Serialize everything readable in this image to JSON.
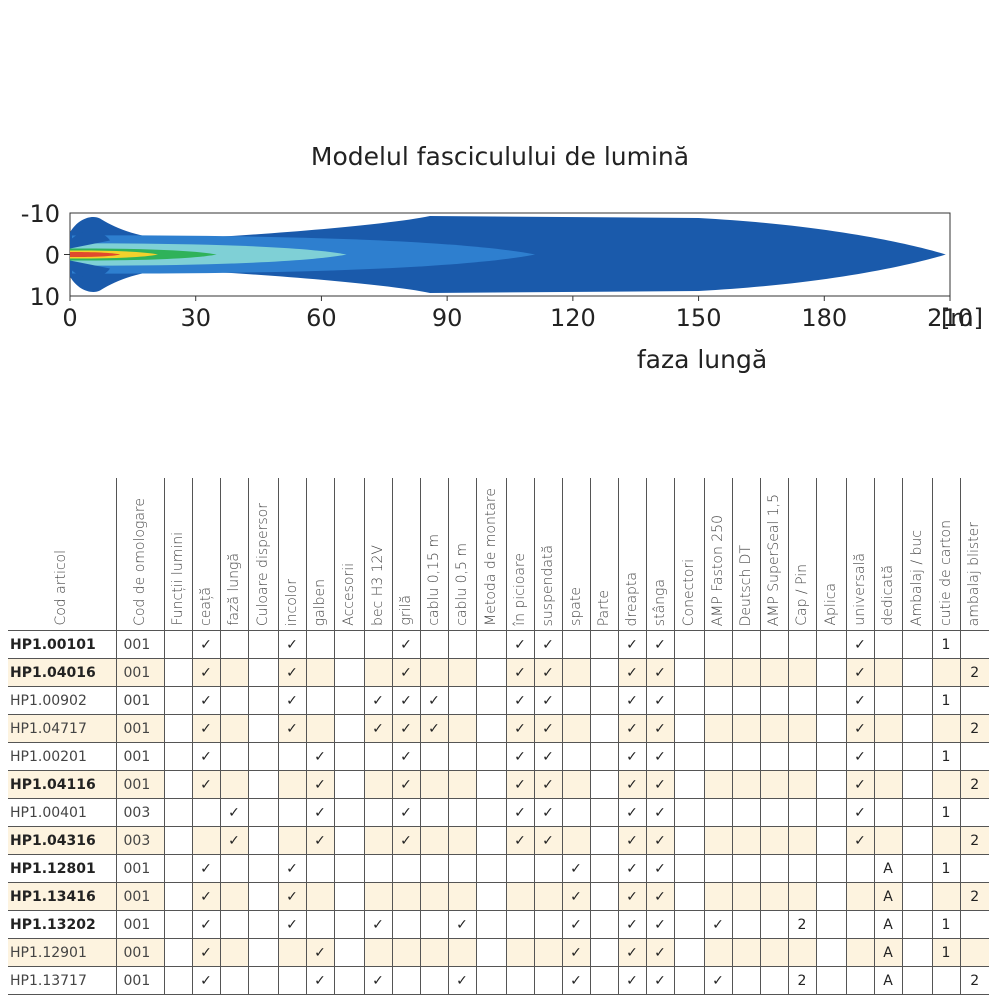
{
  "chart_data": {
    "type": "heatmap",
    "title": "Modelul fasciculului de lumină",
    "xlabel": "faza lungă",
    "x_unit": "[m]",
    "x_ticks": [
      "0",
      "30",
      "60",
      "90",
      "120",
      "150",
      "180",
      "210"
    ],
    "y_ticks": [
      "-10",
      "0",
      "10"
    ],
    "xlim": [
      0,
      210
    ],
    "ylim": [
      -10,
      10
    ],
    "zones": [
      {
        "color": "#1a5aab",
        "reach_m": 209
      },
      {
        "color": "#2e7fcf",
        "reach_m": 111
      },
      {
        "color": "#7fd0d6",
        "reach_m": 66
      },
      {
        "color": "#2fb25a",
        "reach_m": 35
      },
      {
        "color": "#f3d12c",
        "reach_m": 21
      },
      {
        "color": "#e04a2c",
        "reach_m": 12
      }
    ]
  },
  "table": {
    "headers": [
      "Cod articol",
      "Cod de omologare",
      "Funcții lumini",
      "ceață",
      "fază lungă",
      "Culoare dispersor",
      "incolor",
      "galben",
      "Accesorii",
      "bec H3 12V",
      "grilă",
      "cablu 0,15 m",
      "cablu 0,5 m",
      "Metoda de montare",
      "în picioare",
      "suspendată",
      "spate",
      "Parte",
      "dreapta",
      "stânga",
      "Conectori",
      "AMP Faston 250",
      "Deutsch DT",
      "AMP SuperSeal 1,5",
      "Cap / Pin",
      "Aplica",
      "universală",
      "dedicată",
      "Ambalaj / buc",
      "cutie de carton",
      "ambalaj blister"
    ],
    "rows": [
      {
        "cells": [
          "HP1.00101",
          "001",
          "",
          "✓",
          "",
          "",
          "✓",
          "",
          "",
          "",
          "✓",
          "",
          "",
          "",
          "✓",
          "✓",
          "",
          "",
          "✓",
          "✓",
          "",
          "",
          "",
          "",
          "",
          "",
          "✓",
          "",
          "",
          "1",
          ""
        ]
      },
      {
        "cells": [
          "HP1.04016",
          "001",
          "",
          "✓",
          "",
          "",
          "✓",
          "",
          "",
          "",
          "✓",
          "",
          "",
          "",
          "✓",
          "✓",
          "",
          "",
          "✓",
          "✓",
          "",
          "",
          "",
          "",
          "",
          "",
          "✓",
          "",
          "",
          "",
          "2"
        ]
      },
      {
        "cells": [
          "HP1.00902",
          "001",
          "",
          "✓",
          "",
          "",
          "✓",
          "",
          "",
          "✓",
          "✓",
          "✓",
          "",
          "",
          "✓",
          "✓",
          "",
          "",
          "✓",
          "✓",
          "",
          "",
          "",
          "",
          "",
          "",
          "✓",
          "",
          "",
          "1",
          ""
        ]
      },
      {
        "cells": [
          "HP1.04717",
          "001",
          "",
          "✓",
          "",
          "",
          "✓",
          "",
          "",
          "✓",
          "✓",
          "✓",
          "",
          "",
          "✓",
          "✓",
          "",
          "",
          "✓",
          "✓",
          "",
          "",
          "",
          "",
          "",
          "",
          "✓",
          "",
          "",
          "",
          "2"
        ]
      },
      {
        "cells": [
          "HP1.00201",
          "001",
          "",
          "✓",
          "",
          "",
          "",
          "✓",
          "",
          "",
          "✓",
          "",
          "",
          "",
          "✓",
          "✓",
          "",
          "",
          "✓",
          "✓",
          "",
          "",
          "",
          "",
          "",
          "",
          "✓",
          "",
          "",
          "1",
          ""
        ]
      },
      {
        "cells": [
          "HP1.04116",
          "001",
          "",
          "✓",
          "",
          "",
          "",
          "✓",
          "",
          "",
          "✓",
          "",
          "",
          "",
          "✓",
          "✓",
          "",
          "",
          "✓",
          "✓",
          "",
          "",
          "",
          "",
          "",
          "",
          "✓",
          "",
          "",
          "",
          "2"
        ]
      },
      {
        "cells": [
          "HP1.00401",
          "003",
          "",
          "",
          "✓",
          "",
          "",
          "✓",
          "",
          "",
          "✓",
          "",
          "",
          "",
          "✓",
          "✓",
          "",
          "",
          "✓",
          "✓",
          "",
          "",
          "",
          "",
          "",
          "",
          "✓",
          "",
          "",
          "1",
          ""
        ]
      },
      {
        "cells": [
          "HP1.04316",
          "003",
          "",
          "",
          "✓",
          "",
          "",
          "✓",
          "",
          "",
          "✓",
          "",
          "",
          "",
          "✓",
          "✓",
          "",
          "",
          "✓",
          "✓",
          "",
          "",
          "",
          "",
          "",
          "",
          "✓",
          "",
          "",
          "",
          "2"
        ]
      },
      {
        "cells": [
          "HP1.12801",
          "001",
          "",
          "✓",
          "",
          "",
          "✓",
          "",
          "",
          "",
          "",
          "",
          "",
          "",
          "",
          "",
          "✓",
          "",
          "✓",
          "✓",
          "",
          "",
          "",
          "",
          "",
          "",
          "",
          "A",
          "",
          "1",
          ""
        ]
      },
      {
        "cells": [
          "HP1.13416",
          "001",
          "",
          "✓",
          "",
          "",
          "✓",
          "",
          "",
          "",
          "",
          "",
          "",
          "",
          "",
          "",
          "✓",
          "",
          "✓",
          "✓",
          "",
          "",
          "",
          "",
          "",
          "",
          "",
          "A",
          "",
          "",
          "2"
        ]
      },
      {
        "cells": [
          "HP1.13202",
          "001",
          "",
          "✓",
          "",
          "",
          "✓",
          "",
          "",
          "✓",
          "",
          "",
          "✓",
          "",
          "",
          "",
          "✓",
          "",
          "✓",
          "✓",
          "",
          "✓",
          "",
          "",
          "2",
          "",
          "",
          "A",
          "",
          "1",
          ""
        ]
      },
      {
        "cells": [
          "HP1.12901",
          "001",
          "",
          "✓",
          "",
          "",
          "",
          "✓",
          "",
          "",
          "",
          "",
          "",
          "",
          "",
          "",
          "✓",
          "",
          "✓",
          "✓",
          "",
          "",
          "",
          "",
          "",
          "",
          "",
          "A",
          "",
          "1",
          ""
        ]
      },
      {
        "cells": [
          "HP1.13717",
          "001",
          "",
          "✓",
          "",
          "",
          "",
          "✓",
          "",
          "✓",
          "",
          "",
          "✓",
          "",
          "",
          "",
          "✓",
          "",
          "✓",
          "✓",
          "",
          "✓",
          "",
          "",
          "2",
          "",
          "",
          "A",
          "",
          "",
          "2"
        ]
      }
    ]
  }
}
